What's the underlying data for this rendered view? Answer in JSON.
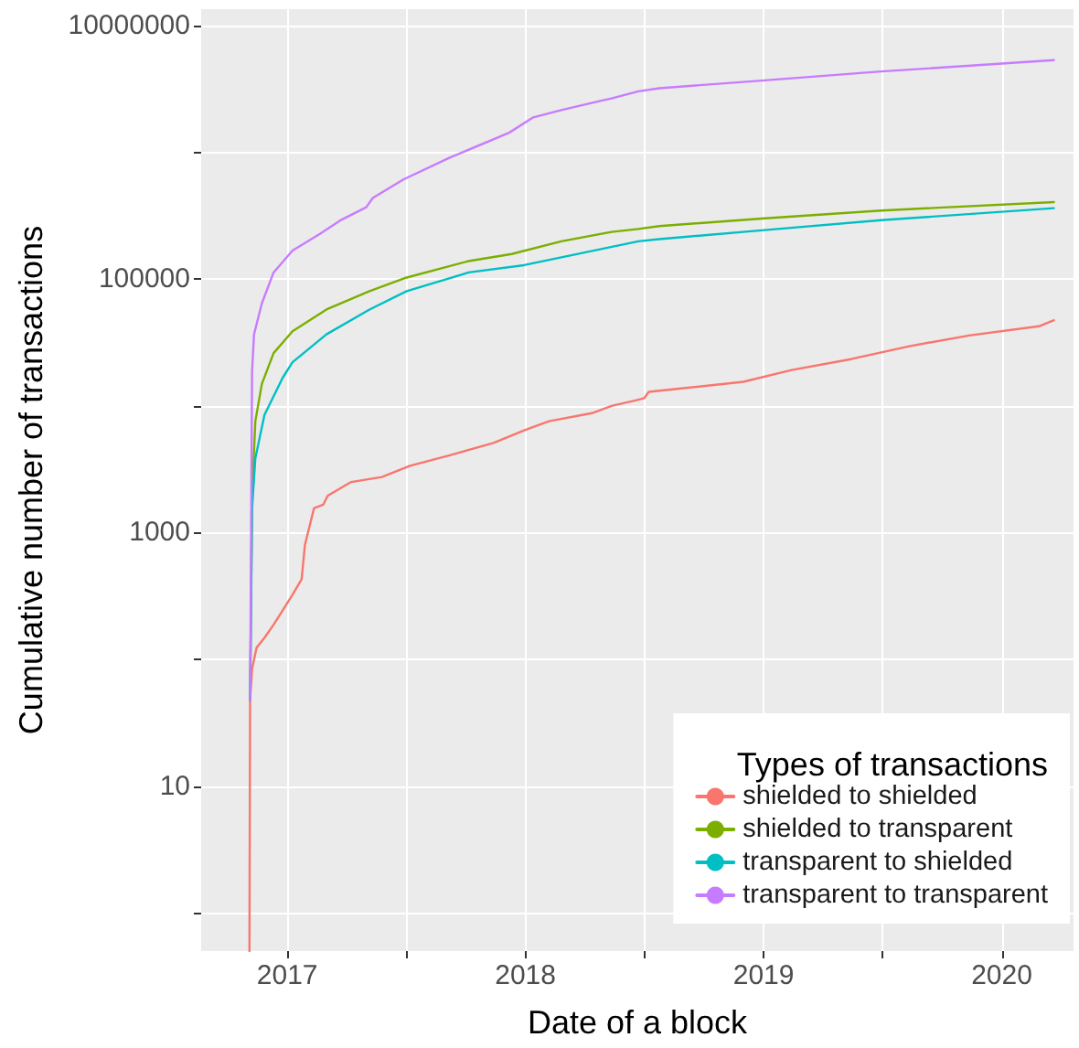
{
  "chart_data": {
    "type": "line",
    "xlabel": "Date of a block",
    "ylabel": "Cumulative number of transactions",
    "legend_title": "Types of transactions",
    "legend": "bottom right",
    "log": "y",
    "grid": true,
    "marker": "none",
    "line_style": "solid",
    "xlim": [
      "2016-08-22",
      "2020-04-20"
    ],
    "xticks": [
      {
        "value": "2017-01-01",
        "label": "2017"
      },
      {
        "value": "2017-07-02",
        "label": null
      },
      {
        "value": "2018-01-01",
        "label": "2018"
      },
      {
        "value": "2018-07-02",
        "label": null
      },
      {
        "value": "2019-01-01",
        "label": "2019"
      },
      {
        "value": "2019-07-02",
        "label": null
      },
      {
        "value": "2020-01-01",
        "label": "2020"
      }
    ],
    "ylim": [
      0.5,
      13500000
    ],
    "yticks": [
      {
        "value": 1,
        "label": null
      },
      10,
      {
        "value": 100,
        "label": null
      },
      1000,
      {
        "value": 10000,
        "label": null
      },
      100000,
      {
        "value": 1000000,
        "label": null
      },
      10000000
    ],
    "series": [
      {
        "name": "shielded to shielded",
        "color": "#f8766d",
        "x": [
          "2016-11-04",
          "2016-11-05",
          "2016-11-08",
          "2016-11-15",
          "2016-11-27",
          "2016-12-11",
          "2016-12-25",
          "2017-01-09",
          "2017-01-23",
          "2017-01-28",
          "2017-02-11",
          "2017-02-25",
          "2017-03-04",
          "2017-04-09",
          "2017-05-26",
          "2017-07-08",
          "2017-09-07",
          "2017-11-13",
          "2017-12-30",
          "2018-02-06",
          "2018-04-13",
          "2018-05-13",
          "2018-06-23",
          "2018-07-02",
          "2018-07-09",
          "2018-12-01",
          "2019-02-13",
          "2019-05-15",
          "2019-08-14",
          "2019-11-14",
          "2020-02-27",
          "2020-03-21"
        ],
        "values": [
          0.5,
          48,
          84,
          124,
          148,
          188,
          244,
          324,
          430,
          798,
          1563,
          1660,
          1960,
          2510,
          2750,
          3370,
          4080,
          5100,
          6400,
          7570,
          8770,
          10000,
          11200,
          11500,
          12900,
          15500,
          19200,
          23400,
          29700,
          36100,
          42500,
          47400
        ]
      },
      {
        "name": "shielded to transparent",
        "color": "#7cae00",
        "x": [
          "2016-11-05",
          "2016-11-08",
          "2016-11-13",
          "2016-11-23",
          "2016-12-11",
          "2017-01-09",
          "2017-03-02",
          "2017-05-07",
          "2017-07-03",
          "2017-10-06",
          "2017-12-11",
          "2018-02-25",
          "2018-05-13",
          "2018-06-23",
          "2018-07-25",
          "2018-12-29",
          "2019-06-30",
          "2020-03-21"
        ],
        "values": [
          48,
          1960,
          7570,
          14900,
          26100,
          38800,
          57600,
          80500,
          103000,
          139000,
          158000,
          199000,
          236000,
          249000,
          262000,
          301000,
          348000,
          405000
        ]
      },
      {
        "name": "transparent to shielded",
        "color": "#00bfc4",
        "x": [
          "2016-11-05",
          "2016-11-08",
          "2016-11-13",
          "2016-11-27",
          "2016-12-25",
          "2017-01-09",
          "2017-03-02",
          "2017-05-07",
          "2017-07-03",
          "2017-10-06",
          "2017-12-30",
          "2018-06-23",
          "2018-07-25",
          "2018-12-29",
          "2019-06-30",
          "2020-03-21"
        ],
        "values": [
          48,
          1563,
          3850,
          8490,
          16700,
          22100,
          36700,
          57600,
          80500,
          113000,
          129000,
          199000,
          207000,
          243000,
          292000,
          363000
        ]
      },
      {
        "name": "transparent to transparent",
        "color": "#c77cff",
        "x": [
          "2016-11-05",
          "2016-11-08",
          "2016-11-11",
          "2016-11-23",
          "2016-12-11",
          "2017-01-09",
          "2017-02-20",
          "2017-03-25",
          "2017-05-02",
          "2017-05-12",
          "2017-06-28",
          "2017-09-07",
          "2017-12-07",
          "2018-01-13",
          "2018-02-25",
          "2018-04-27",
          "2018-05-13",
          "2018-06-23",
          "2018-07-25",
          "2018-12-29",
          "2019-06-30",
          "2020-03-21"
        ],
        "values": [
          48,
          18700,
          36700,
          64400,
          113000,
          168000,
          228000,
          294000,
          369000,
          437000,
          612000,
          910000,
          1430000,
          1890000,
          2160000,
          2560000,
          2670000,
          3030000,
          3210000,
          3690000,
          4350000,
          5350000
        ]
      }
    ]
  }
}
